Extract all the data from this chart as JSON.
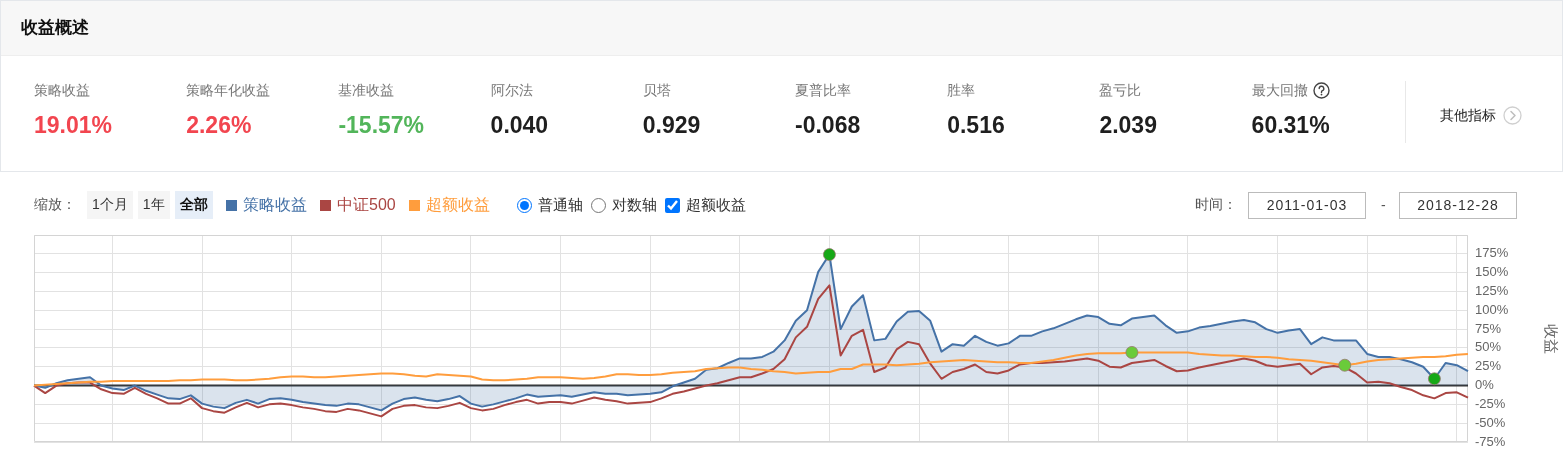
{
  "chart_data": [
    {
      "type": "other",
      "title": "收益概述",
      "annotations": [
        "策略收益",
        "19.01%",
        "策略年化收益",
        "2.26%",
        "基准收益",
        "-15.57%",
        "阿尔法",
        "0.040",
        "贝塔",
        "0.929",
        "夏普比率",
        "-0.068",
        "胜率",
        "0.516",
        "盈亏比",
        "2.039",
        "最大回撤",
        "60.31%",
        "其他指标"
      ]
    },
    {
      "type": "line",
      "ylabel": "收益",
      "annotations": [
        "缩放：",
        "1个月",
        "1年",
        "全部",
        "普通轴",
        "对数轴",
        "超额收益",
        "时间：",
        "2011-01-03",
        "-",
        "2018-12-28"
      ],
      "categories": [
        null,
        null,
        null,
        null,
        null,
        null,
        null,
        null,
        null,
        null,
        null,
        null,
        null,
        null,
        null,
        null,
        null,
        null,
        null,
        null,
        null,
        null,
        null,
        null,
        null,
        null,
        null,
        null,
        null,
        null,
        null,
        null,
        null,
        null,
        null,
        null,
        null,
        null,
        null,
        null,
        null,
        null,
        null,
        null,
        null,
        null,
        null,
        null,
        null,
        null,
        null,
        null,
        null,
        null,
        null,
        null,
        null,
        null,
        null,
        null,
        null,
        null,
        null,
        null,
        null,
        null,
        null,
        null,
        null,
        null,
        null,
        null,
        null,
        null,
        null,
        null,
        null,
        null,
        null,
        null,
        null,
        null,
        null,
        null,
        null,
        null,
        null,
        null,
        null,
        null,
        null,
        null,
        null,
        null,
        null,
        null,
        null,
        null,
        null,
        null,
        null,
        null,
        null,
        null,
        null,
        null,
        null,
        null,
        null,
        null,
        null,
        null,
        null,
        null,
        null,
        null,
        null,
        null,
        null,
        null,
        null,
        null,
        null,
        null,
        null,
        null,
        null,
        null,
        null
      ],
      "series": [
        {
          "name": "策略收益",
          "type": "area",
          "color": "#4572a7",
          "values": [
            0,
            -3,
            3,
            7,
            9,
            11,
            0,
            -4,
            -6,
            0,
            -7,
            -12,
            -17,
            -18,
            -13,
            -24,
            -28,
            -30,
            -23,
            -19,
            -24,
            -18,
            -17,
            -19,
            -22,
            -24,
            -26,
            -27,
            -24,
            -25,
            -29,
            -33,
            -24,
            -18,
            -16,
            -19,
            -21,
            -18,
            -14,
            -24,
            -28,
            -25,
            -21,
            -17,
            -12,
            -15,
            -14,
            -13,
            -15,
            -12,
            -9,
            -11,
            -11,
            -13,
            -12,
            -11,
            -9,
            -1,
            4,
            9,
            21,
            23,
            30,
            36,
            36,
            38,
            45,
            60,
            86,
            100,
            151,
            174,
            75,
            105,
            120,
            60,
            62,
            85,
            98,
            99,
            86,
            45,
            55,
            53,
            66,
            58,
            53,
            56,
            66,
            66,
            72,
            76,
            82,
            88,
            93,
            91,
            82,
            80,
            89,
            91,
            93,
            80,
            70,
            72,
            77,
            79,
            82,
            85,
            87,
            84,
            75,
            70,
            73,
            75,
            55,
            64,
            60,
            60,
            60,
            42,
            38,
            38,
            35,
            31,
            25,
            9,
            30,
            27,
            19
          ]
        },
        {
          "name": "中证500",
          "color": "#aa4643",
          "values": [
            0,
            -10,
            0,
            3,
            4,
            4,
            -5,
            -10,
            -11,
            -3,
            -11,
            -17,
            -24,
            -24,
            -17,
            -30,
            -34,
            -36,
            -29,
            -23,
            -29,
            -25,
            -24,
            -26,
            -29,
            -31,
            -34,
            -35,
            -31,
            -33,
            -37,
            -41,
            -31,
            -27,
            -26,
            -29,
            -30,
            -27,
            -23,
            -30,
            -33,
            -31,
            -26,
            -22,
            -19,
            -24,
            -22,
            -22,
            -24,
            -20,
            -16,
            -19,
            -21,
            -24,
            -23,
            -22,
            -17,
            -11,
            -8,
            -4,
            0,
            3,
            7,
            11,
            11,
            16,
            22,
            35,
            64,
            78,
            115,
            133,
            40,
            66,
            74,
            18,
            24,
            48,
            58,
            55,
            29,
            9,
            18,
            22,
            28,
            18,
            16,
            20,
            28,
            30,
            30,
            31,
            32,
            34,
            36,
            33,
            25,
            24,
            30,
            32,
            34,
            26,
            19,
            20,
            24,
            27,
            30,
            33,
            36,
            33,
            27,
            25,
            27,
            29,
            15,
            24,
            26,
            24,
            16,
            4,
            5,
            3,
            -2,
            -6,
            -13,
            -17,
            -10,
            -9,
            -16
          ]
        },
        {
          "name": "超额收益",
          "color": "#ff9d3d",
          "values": [
            0,
            1,
            2,
            3,
            4,
            5,
            5,
            6,
            6,
            6,
            6,
            6,
            6,
            7,
            7,
            8,
            8,
            8,
            7,
            7,
            8,
            9,
            11,
            12,
            12,
            11,
            11,
            12,
            13,
            14,
            15,
            16,
            16,
            15,
            13,
            12,
            15,
            14,
            13,
            12,
            8,
            7,
            7,
            8,
            9,
            11,
            11,
            11,
            10,
            9,
            10,
            12,
            15,
            15,
            14,
            14,
            15,
            17,
            18,
            19,
            22,
            23,
            24,
            24,
            22,
            21,
            19,
            18,
            16,
            17,
            18,
            18,
            22,
            22,
            28,
            28,
            28,
            27,
            28,
            29,
            31,
            32,
            33,
            34,
            33,
            32,
            31,
            31,
            30,
            30,
            32,
            34,
            37,
            40,
            42,
            43,
            43,
            43,
            44,
            44,
            44,
            44,
            44,
            44,
            42,
            41,
            40,
            40,
            39,
            38,
            38,
            37,
            35,
            34,
            33,
            31,
            29,
            27,
            29,
            32,
            34,
            35,
            36,
            37,
            38,
            38,
            39,
            41,
            42
          ]
        },
        {
          "type": "scatter",
          "marker": "circle",
          "color": "#16a816",
          "values": [
            null,
            null,
            null,
            null,
            null,
            null,
            null,
            null,
            null,
            null,
            null,
            null,
            null,
            null,
            null,
            null,
            null,
            null,
            null,
            null,
            null,
            null,
            null,
            null,
            null,
            null,
            null,
            null,
            null,
            null,
            null,
            null,
            null,
            null,
            null,
            null,
            null,
            null,
            null,
            null,
            null,
            null,
            null,
            null,
            null,
            null,
            null,
            null,
            null,
            null,
            null,
            null,
            null,
            null,
            null,
            null,
            null,
            null,
            null,
            null,
            null,
            null,
            null,
            null,
            null,
            null,
            null,
            null,
            null,
            null,
            null,
            174,
            null,
            null,
            null,
            null,
            null,
            null,
            null,
            null,
            null,
            null,
            null,
            null,
            null,
            null,
            null,
            null,
            null,
            null,
            null,
            null,
            null,
            null,
            null,
            null,
            null,
            null,
            null,
            null,
            null,
            null,
            null,
            null,
            null,
            null,
            null,
            null,
            null,
            null,
            null,
            null,
            null,
            null,
            null,
            null,
            null,
            null,
            null,
            null,
            null,
            null,
            null,
            null,
            null,
            9,
            null,
            null,
            null
          ]
        },
        {
          "type": "scatter",
          "marker": "circle",
          "color": "#6acb3a",
          "values": [
            null,
            null,
            null,
            null,
            null,
            null,
            null,
            null,
            null,
            null,
            null,
            null,
            null,
            null,
            null,
            null,
            null,
            null,
            null,
            null,
            null,
            null,
            null,
            null,
            null,
            null,
            null,
            null,
            null,
            null,
            null,
            null,
            null,
            null,
            null,
            null,
            null,
            null,
            null,
            null,
            null,
            null,
            null,
            null,
            null,
            null,
            null,
            null,
            null,
            null,
            null,
            null,
            null,
            null,
            null,
            null,
            null,
            null,
            null,
            null,
            null,
            null,
            null,
            null,
            null,
            null,
            null,
            null,
            null,
            null,
            null,
            null,
            null,
            null,
            null,
            null,
            null,
            null,
            null,
            null,
            null,
            null,
            null,
            null,
            null,
            null,
            null,
            null,
            null,
            null,
            null,
            null,
            null,
            null,
            null,
            null,
            null,
            null,
            44,
            null,
            null,
            null,
            null,
            null,
            null,
            null,
            null,
            null,
            null,
            null,
            null,
            null,
            null,
            null,
            null,
            null,
            null,
            27,
            null,
            null,
            null,
            null,
            null,
            null,
            null,
            null,
            null,
            null,
            null
          ]
        }
      ],
      "ylim": [
        -75,
        200
      ],
      "yticks": [
        {
          "value": -75,
          "label": "-75%"
        },
        {
          "value": -50,
          "label": "-50%"
        },
        {
          "value": -25,
          "label": "-25%"
        },
        {
          "value": 0,
          "label": "0%"
        },
        {
          "value": 25,
          "label": "25%"
        },
        {
          "value": 50,
          "label": "50%"
        },
        {
          "value": 75,
          "label": "75%"
        },
        {
          "value": 100,
          "label": "100%"
        },
        {
          "value": 125,
          "label": "125%"
        },
        {
          "value": 150,
          "label": "150%"
        },
        {
          "value": 175,
          "label": "175%"
        },
        {
          "value": 200,
          "label": null
        }
      ],
      "ref_lines": [
        {
          "axis": "y",
          "value": 0,
          "color": "#333333"
        }
      ],
      "grid": true,
      "legend": "top left",
      "tick_labels": "y",
      "marker": "none",
      "line_style": "solid"
    }
  ]
}
